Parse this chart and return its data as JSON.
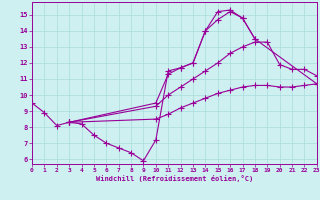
{
  "xlabel": "Windchill (Refroidissement éolien,°C)",
  "xlim": [
    0,
    23
  ],
  "ylim": [
    5.7,
    15.8
  ],
  "xticks": [
    0,
    1,
    2,
    3,
    4,
    5,
    6,
    7,
    8,
    9,
    10,
    11,
    12,
    13,
    14,
    15,
    16,
    17,
    18,
    19,
    20,
    21,
    22,
    23
  ],
  "yticks": [
    6,
    7,
    8,
    9,
    10,
    11,
    12,
    13,
    14,
    15
  ],
  "bg_color": "#cef0f0",
  "grid_color": "#aadddd",
  "line_color": "#990099",
  "line_width": 0.8,
  "marker": "+",
  "marker_size": 4.0,
  "curves": [
    {
      "x": [
        0,
        1,
        2,
        3,
        4,
        5,
        6,
        7,
        8,
        9,
        10,
        11,
        12,
        13,
        14,
        15,
        16,
        17,
        18
      ],
      "y": [
        9.5,
        8.9,
        8.1,
        8.3,
        8.2,
        7.5,
        7.0,
        6.7,
        6.4,
        5.9,
        7.2,
        11.5,
        11.7,
        12.0,
        14.0,
        15.2,
        15.3,
        14.8,
        13.5
      ]
    },
    {
      "x": [
        3,
        10,
        11,
        12,
        13,
        14,
        15,
        16,
        17,
        18,
        23
      ],
      "y": [
        8.3,
        9.5,
        11.3,
        11.7,
        12.0,
        14.0,
        14.7,
        15.2,
        14.8,
        13.5,
        10.7
      ]
    },
    {
      "x": [
        3,
        10,
        11,
        12,
        13,
        14,
        15,
        16,
        17,
        18,
        19,
        20,
        21,
        22,
        23
      ],
      "y": [
        8.3,
        9.3,
        10.0,
        10.5,
        11.0,
        11.5,
        12.0,
        12.6,
        13.0,
        13.3,
        13.3,
        11.9,
        11.6,
        11.6,
        11.2
      ]
    },
    {
      "x": [
        3,
        10,
        11,
        12,
        13,
        14,
        15,
        16,
        17,
        18,
        19,
        20,
        21,
        22,
        23
      ],
      "y": [
        8.3,
        8.5,
        8.8,
        9.2,
        9.5,
        9.8,
        10.1,
        10.3,
        10.5,
        10.6,
        10.6,
        10.5,
        10.5,
        10.6,
        10.7
      ]
    }
  ]
}
